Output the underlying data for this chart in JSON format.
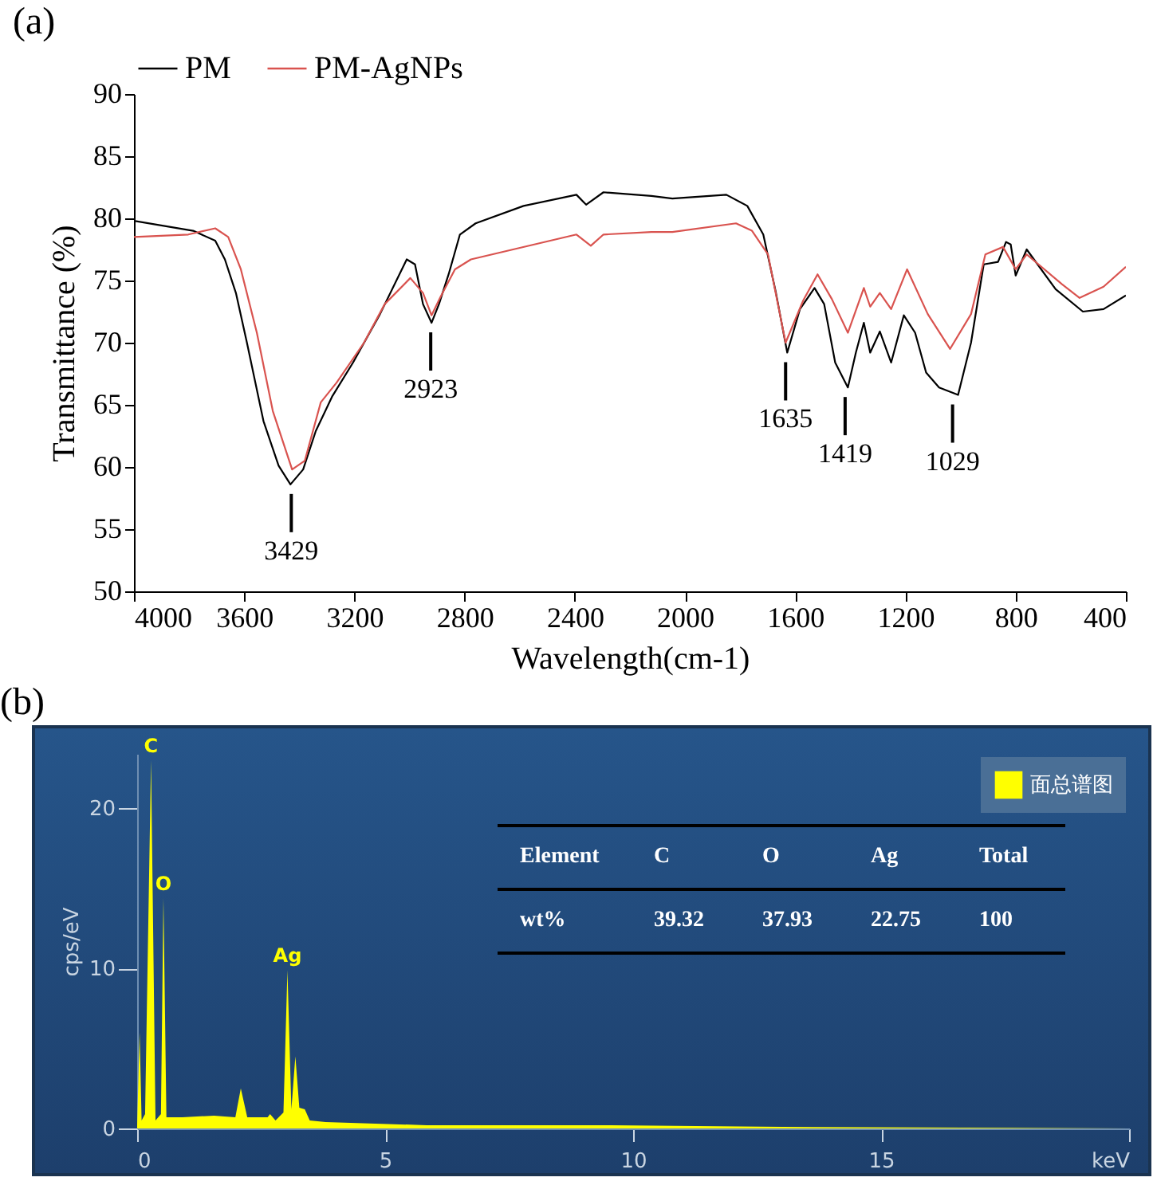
{
  "chart_data": [
    {
      "type": "line",
      "title": "(a)",
      "xlabel": "Wavelength(cm-1)",
      "ylabel": "Transmittance (%)",
      "xlim": [
        4000,
        400
      ],
      "xticks": [
        4000,
        3600,
        3200,
        2800,
        2400,
        2000,
        1600,
        1200,
        800,
        400
      ],
      "ylim": [
        50,
        90
      ],
      "yticks": [
        50,
        55,
        60,
        65,
        70,
        75,
        80,
        85,
        90
      ],
      "legend": "top",
      "series": [
        {
          "name": "PM",
          "color": "#000000",
          "x": [
            4000,
            3785,
            3705,
            3670,
            3630,
            3590,
            3530,
            3475,
            3432,
            3386,
            3340,
            3280,
            3205,
            3107,
            3010,
            2980,
            2951,
            2920,
            2893,
            2858,
            2817,
            2760,
            2586,
            2394,
            2359,
            2296,
            2122,
            2046,
            1850,
            1774,
            1716,
            1670,
            1629,
            1583,
            1530,
            1495,
            1455,
            1409,
            1380,
            1351,
            1328,
            1293,
            1252,
            1206,
            1165,
            1125,
            1078,
            1009,
            962,
            916,
            864,
            835,
            818,
            800,
            760,
            655,
            556,
            481,
            400
          ],
          "values": [
            79.8,
            79.0,
            78.2,
            76.7,
            74.0,
            70.0,
            63.7,
            60.1,
            58.6,
            59.8,
            62.9,
            65.7,
            68.4,
            72.3,
            76.7,
            76.3,
            73.1,
            71.6,
            73.1,
            75.5,
            78.7,
            79.6,
            81.0,
            81.9,
            81.1,
            82.1,
            81.8,
            81.6,
            81.9,
            81.0,
            78.7,
            74.0,
            69.2,
            72.7,
            74.4,
            73.1,
            68.4,
            66.4,
            69.2,
            71.6,
            69.2,
            70.9,
            68.4,
            72.2,
            70.8,
            67.6,
            66.4,
            65.8,
            70.0,
            76.3,
            76.5,
            78.1,
            77.9,
            75.4,
            77.5,
            74.3,
            72.5,
            72.7,
            73.8
          ]
        },
        {
          "name": "PM-AgNPs",
          "color": "#d9534f",
          "x": [
            4000,
            3803,
            3705,
            3658,
            3612,
            3554,
            3496,
            3426,
            3380,
            3322,
            3264,
            3165,
            3090,
            2997,
            2951,
            2920,
            2887,
            2835,
            2777,
            2394,
            2342,
            2296,
            2122,
            2046,
            1815,
            1757,
            1699,
            1635,
            1571,
            1519,
            1467,
            1409,
            1351,
            1328,
            1293,
            1252,
            1194,
            1119,
            1038,
            962,
            910,
            846,
            800,
            760,
            632,
            568,
            481,
            400
          ],
          "values": [
            78.5,
            78.7,
            79.2,
            78.5,
            75.9,
            70.8,
            64.5,
            59.8,
            60.5,
            65.2,
            66.8,
            70.0,
            73.1,
            75.2,
            74.0,
            72.2,
            73.7,
            75.9,
            76.7,
            78.7,
            77.8,
            78.7,
            78.9,
            78.9,
            79.6,
            79.0,
            77.1,
            70.0,
            73.4,
            75.5,
            73.5,
            70.8,
            74.4,
            72.9,
            74.0,
            72.7,
            75.9,
            72.3,
            69.5,
            72.3,
            77.1,
            77.7,
            75.9,
            77.1,
            74.7,
            73.6,
            74.5,
            76.1
          ]
        }
      ],
      "annotations": [
        {
          "text": "3429",
          "x": 3429,
          "y": 58.6
        },
        {
          "text": "2923",
          "x": 2923,
          "y": 71.6
        },
        {
          "text": "1635",
          "x": 1635,
          "y": 69.2
        },
        {
          "text": "1419",
          "x": 1419,
          "y": 66.4
        },
        {
          "text": "1029",
          "x": 1029,
          "y": 65.8
        }
      ]
    },
    {
      "type": "area",
      "title": "(b)",
      "ylabel": "cps/eV",
      "xlim": [
        0,
        20
      ],
      "xticks": [
        0,
        5,
        10,
        15,
        {
          "value": 20,
          "label": "keV"
        }
      ],
      "ylim": [
        0,
        23.4
      ],
      "yticks": [
        0,
        10,
        20
      ],
      "legend": "top right",
      "series": [
        {
          "name": "面总谱图",
          "color": "#ffff00",
          "x": [
            0,
            0.05,
            0.09,
            0.16,
            0.28,
            0.37,
            0.48,
            0.53,
            0.59,
            0.91,
            1.55,
            1.98,
            2.09,
            2.22,
            2.63,
            2.68,
            2.79,
            2.95,
            3.03,
            3.11,
            3.19,
            3.27,
            3.38,
            3.48,
            3.8,
            5.84,
            9.55,
            13,
            20
          ],
          "values": [
            0.2,
            6.0,
            0.5,
            0.9,
            23.0,
            0.5,
            0.9,
            14.4,
            0.7,
            0.7,
            0.8,
            0.7,
            2.5,
            0.7,
            0.7,
            0.9,
            0.5,
            1.0,
            9.9,
            1.2,
            4.5,
            1.3,
            1.2,
            0.5,
            0.4,
            0.2,
            0.2,
            0.1,
            0
          ]
        }
      ],
      "annotations": [
        {
          "text": "C",
          "x": 0.28,
          "y": 23.0
        },
        {
          "text": "O",
          "x": 0.53,
          "y": 14.4
        },
        {
          "text": "Ag",
          "x": 3.03,
          "y": 9.9
        },
        "Element",
        "C",
        "O",
        "Ag",
        "Total",
        "wt%",
        "39.32",
        "37.93",
        "22.75",
        "100"
      ]
    }
  ]
}
